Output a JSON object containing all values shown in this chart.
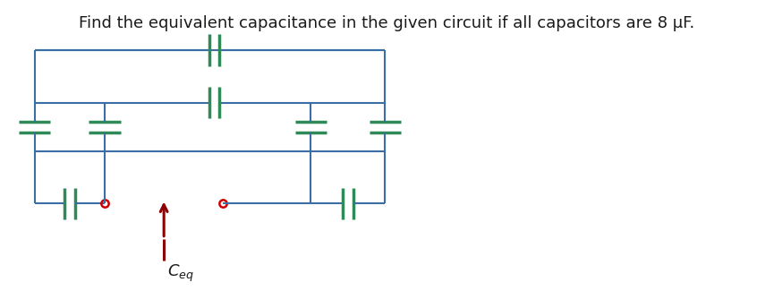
{
  "title": "Find the equivalent capacitance in the given circuit if all capacitors are 8 μF.",
  "title_fontsize": 13,
  "title_color": "#1a1a1a",
  "bg_color": "#ffffff",
  "wire_color": "#3a6ea5",
  "cap_color": "#2e8b57",
  "label_color": "#cc0000",
  "arrow_color": "#8b0000",
  "ceq_label": "$C_{eq}$",
  "fig_width": 8.65,
  "fig_height": 3.25,
  "dpi": 100
}
